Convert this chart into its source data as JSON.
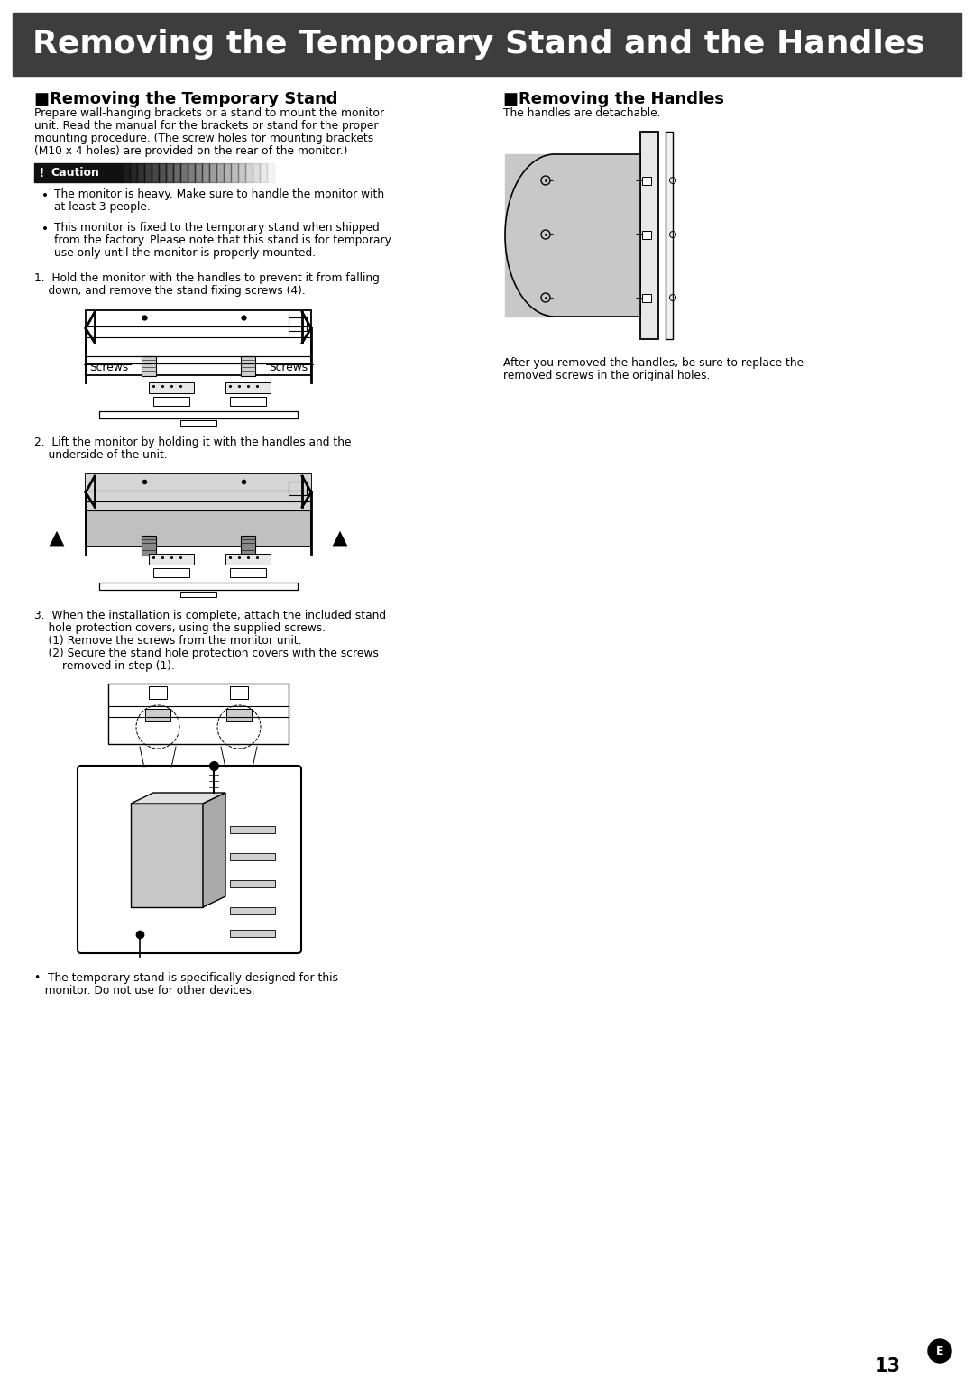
{
  "title": "Removing the Temporary Stand and the Handles",
  "title_bg": "#3d3d3d",
  "title_color": "#ffffff",
  "page_bg": "#ffffff",
  "left_heading": "■Removing the Temporary Stand",
  "right_heading": "■Removing the Handles",
  "intro_lines": [
    "Prepare wall-hanging brackets or a stand to mount the monitor",
    "unit. Read the manual for the brackets or stand for the proper",
    "mounting procedure. (The screw holes for mounting brackets",
    "(M10 x 4 holes) are provided on the rear of the monitor.)"
  ],
  "caution_bullets": [
    [
      "The monitor is heavy. Make sure to handle the monitor with",
      "at least 3 people."
    ],
    [
      "This monitor is fixed to the temporary stand when shipped",
      "from the factory. Please note that this stand is for temporary",
      "use only until the monitor is properly mounted."
    ]
  ],
  "step1_lines": [
    "1.  Hold the monitor with the handles to prevent it from falling",
    "    down, and remove the stand fixing screws (4)."
  ],
  "step2_lines": [
    "2.  Lift the monitor by holding it with the handles and the",
    "    underside of the unit."
  ],
  "step3_lines": [
    "3.  When the installation is complete, attach the included stand",
    "    hole protection covers, using the supplied screws.",
    "    (1) Remove the screws from the monitor unit.",
    "    (2) Secure the stand hole protection covers with the screws",
    "        removed in step (1)."
  ],
  "right_intro": "The handles are detachable.",
  "right_note_lines": [
    "After you removed the handles, be sure to replace the",
    "removed screws in the original holes."
  ],
  "footer_lines": [
    "•  The temporary stand is specifically designed for this",
    "   monitor. Do not use for other devices."
  ],
  "page_number": "13",
  "page_suffix": "E"
}
